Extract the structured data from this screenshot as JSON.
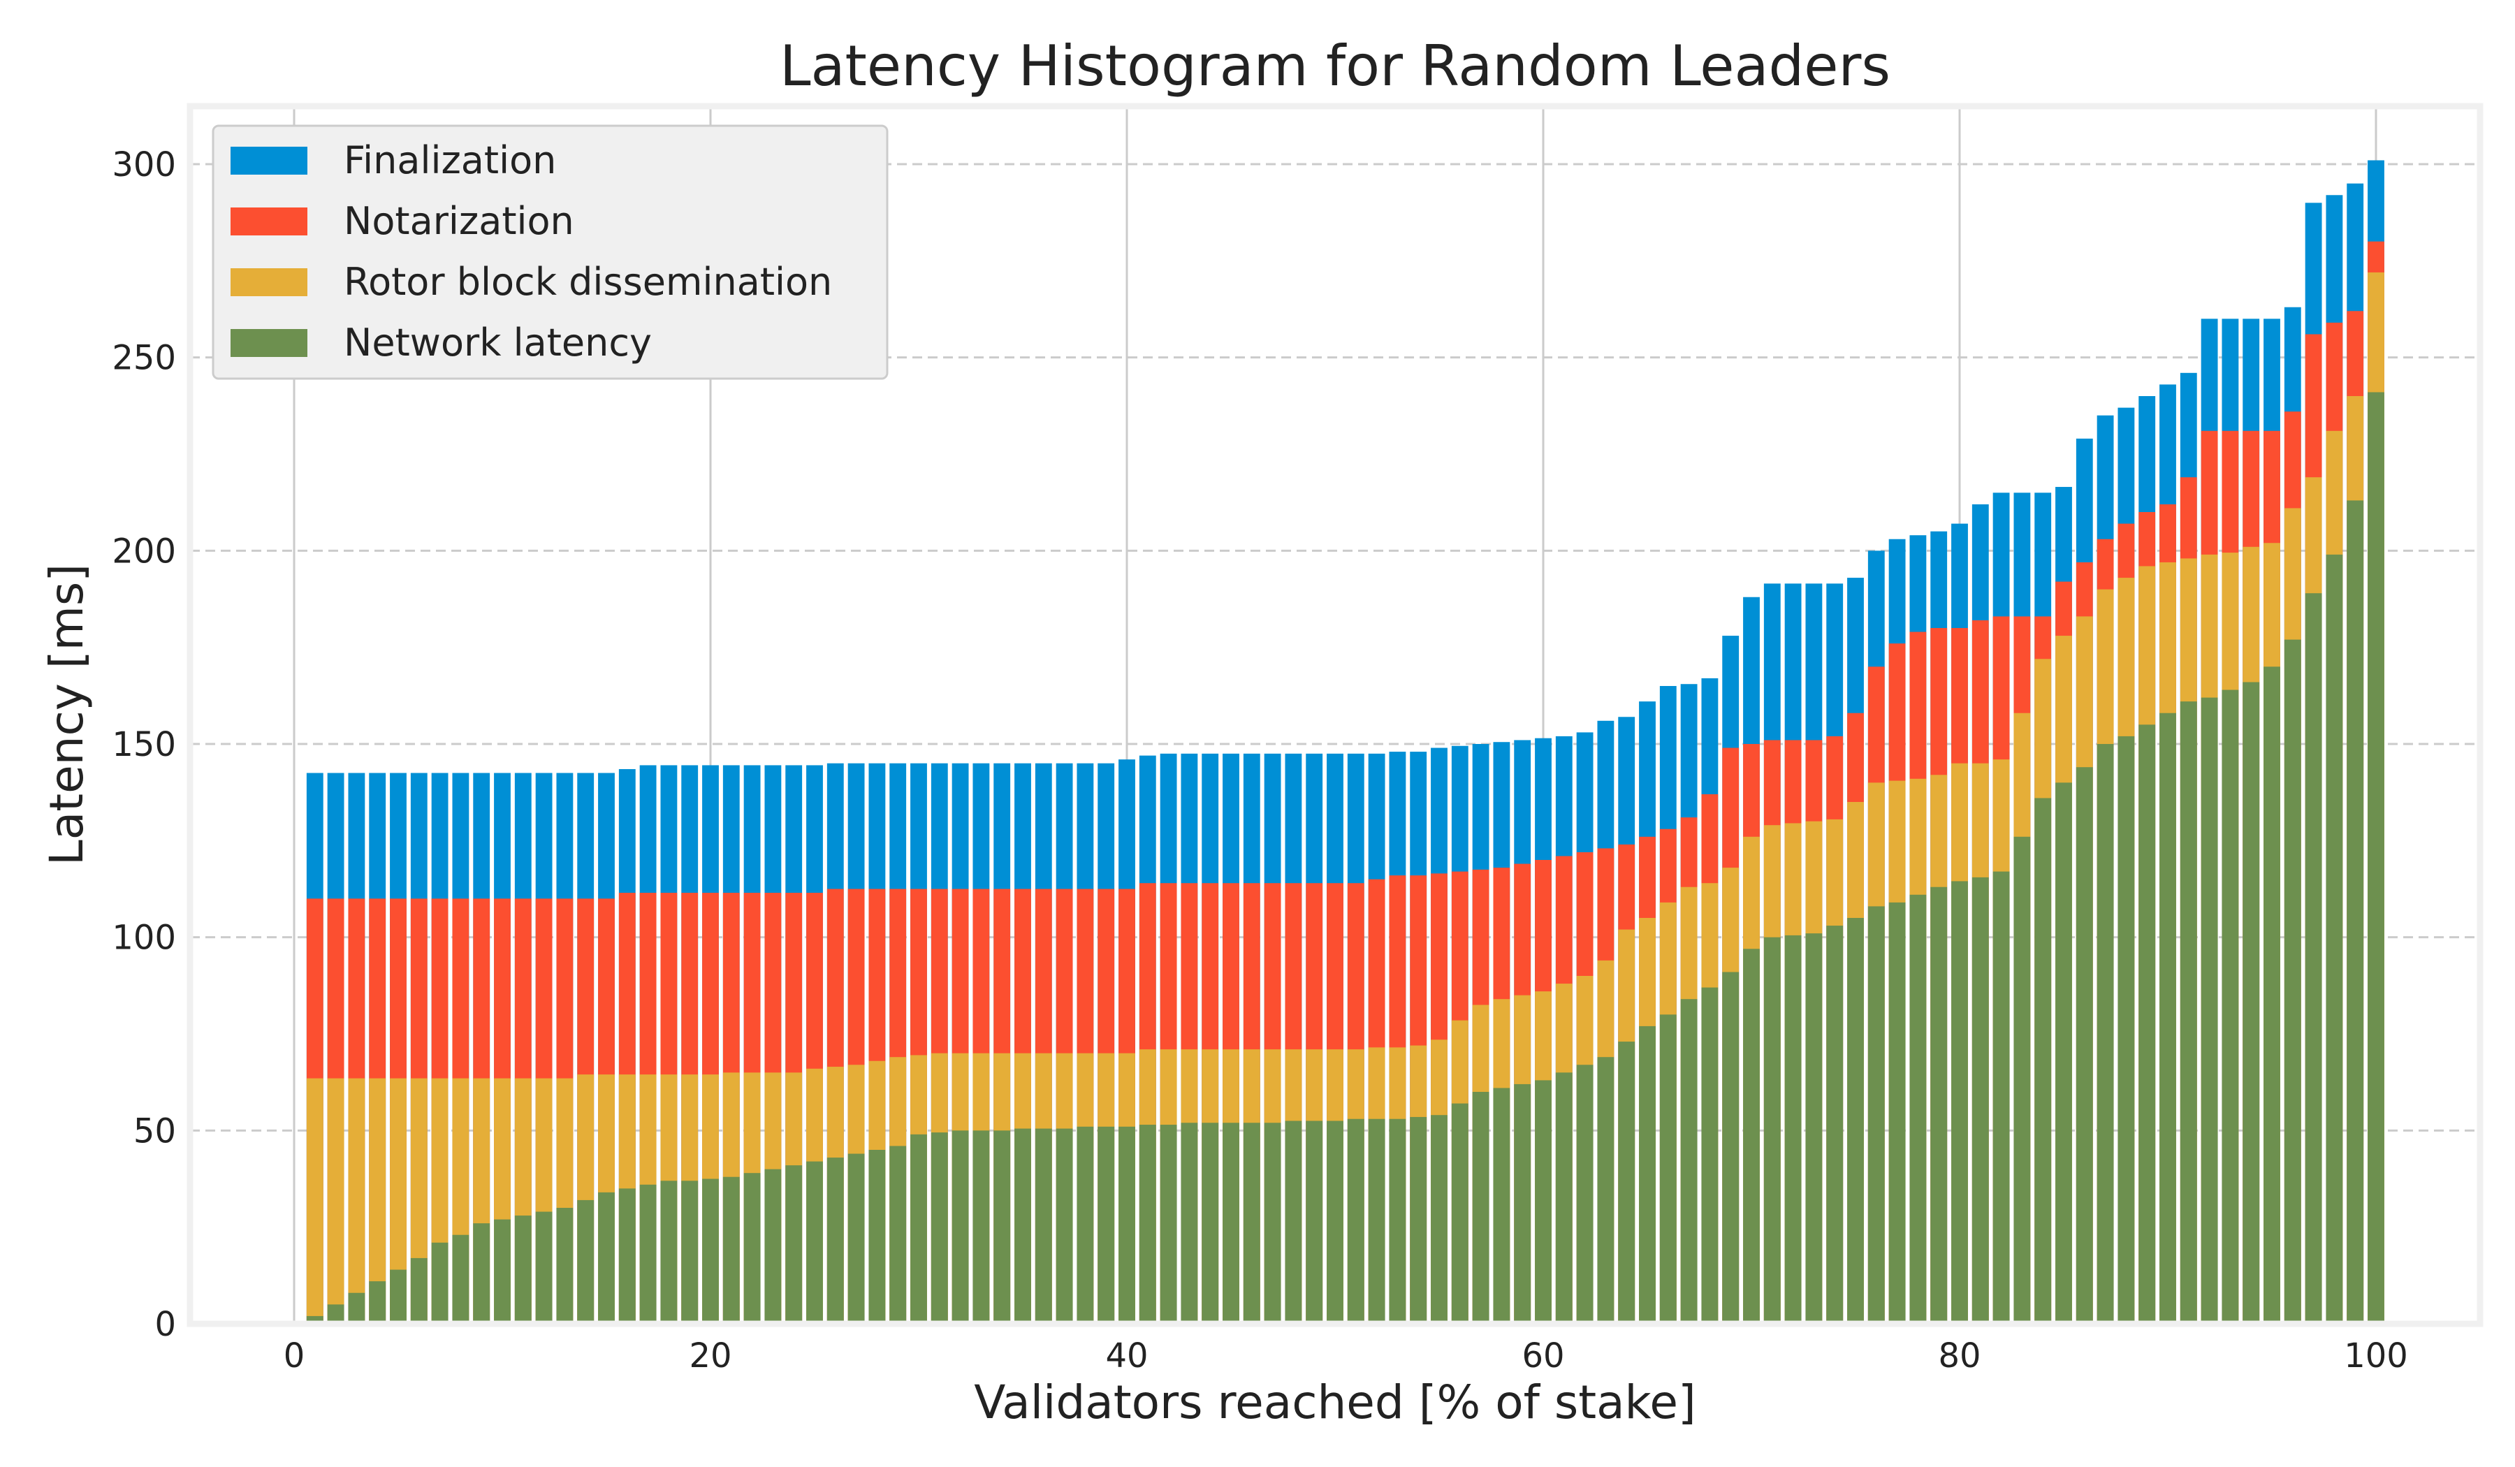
{
  "chart_data": {
    "type": "bar",
    "layout": "stacked (each series value is the cumulative latency at which the stage completes)",
    "title": "Latency Histogram for Random Leaders",
    "xlabel": "Validators reached [% of stake]",
    "ylabel": "Latency [ms]",
    "xlim": [
      -5,
      105
    ],
    "ylim": [
      0,
      315
    ],
    "xticks": [
      0,
      20,
      40,
      60,
      80,
      100
    ],
    "yticks": [
      0,
      50,
      100,
      150,
      200,
      250,
      300
    ],
    "grid": true,
    "legend_position": "top-left",
    "x": [
      1,
      2,
      3,
      4,
      5,
      6,
      7,
      8,
      9,
      10,
      11,
      12,
      13,
      14,
      15,
      16,
      17,
      18,
      19,
      20,
      21,
      22,
      23,
      24,
      25,
      26,
      27,
      28,
      29,
      30,
      31,
      32,
      33,
      34,
      35,
      36,
      37,
      38,
      39,
      40,
      41,
      42,
      43,
      44,
      45,
      46,
      47,
      48,
      49,
      50,
      51,
      52,
      53,
      54,
      55,
      56,
      57,
      58,
      59,
      60,
      61,
      62,
      63,
      64,
      65,
      66,
      67,
      68,
      69,
      70,
      71,
      72,
      73,
      74,
      75,
      76,
      77,
      78,
      79,
      80,
      81,
      82,
      83,
      84,
      85,
      86,
      87,
      88,
      89,
      90,
      91,
      92,
      93,
      94,
      95,
      96,
      97,
      98,
      99,
      100
    ],
    "series": [
      {
        "name": "Finalization",
        "color": "#008fd5",
        "values": [
          142.5,
          142.5,
          142.5,
          142.5,
          142.5,
          142.5,
          142.5,
          142.5,
          142.5,
          142.5,
          142.5,
          142.5,
          142.5,
          142.5,
          142.5,
          143.5,
          144.5,
          144.5,
          144.5,
          144.5,
          144.5,
          144.5,
          144.5,
          144.5,
          144.5,
          145,
          145,
          145,
          145,
          145,
          145,
          145,
          145,
          145,
          145,
          145,
          145,
          145,
          145,
          146,
          147,
          147.5,
          147.5,
          147.5,
          147.5,
          147.5,
          147.5,
          147.5,
          147.5,
          147.5,
          147.5,
          147.5,
          148,
          148,
          149,
          149.5,
          150,
          150.5,
          151,
          151.5,
          152,
          153,
          156,
          157,
          161,
          165,
          165.5,
          167,
          178,
          188,
          191.5,
          191.5,
          191.5,
          191.5,
          193,
          200,
          203,
          204,
          205,
          207,
          212,
          215,
          215,
          215,
          216.5,
          229,
          235,
          237,
          240,
          243,
          246,
          260,
          260,
          260,
          260,
          263,
          290,
          292,
          295,
          301
        ]
      },
      {
        "name": "Notarization",
        "color": "#fc4f30",
        "values": [
          110,
          110,
          110,
          110,
          110,
          110,
          110,
          110,
          110,
          110,
          110,
          110,
          110,
          110,
          110,
          111.5,
          111.5,
          111.5,
          111.5,
          111.5,
          111.5,
          111.5,
          111.5,
          111.5,
          111.5,
          112.5,
          112.5,
          112.5,
          112.5,
          112.5,
          112.5,
          112.5,
          112.5,
          112.5,
          112.5,
          112.5,
          112.5,
          112.5,
          112.5,
          112.5,
          114,
          114,
          114,
          114,
          114,
          114,
          114,
          114,
          114,
          114,
          114,
          115,
          116,
          116,
          116.5,
          117,
          117.5,
          118,
          119,
          120,
          121,
          122,
          123,
          124,
          126,
          128,
          131,
          137,
          149,
          150,
          151,
          151,
          151,
          152,
          158,
          170,
          176,
          179,
          180,
          180,
          182,
          183,
          183,
          183,
          192,
          197,
          203,
          207,
          210,
          212,
          219,
          231,
          231,
          231,
          231,
          236,
          256,
          259,
          262,
          280
        ]
      },
      {
        "name": "Rotor block dissemination",
        "color": "#e5ae38",
        "values": [
          63.5,
          63.5,
          63.5,
          63.5,
          63.5,
          63.5,
          63.5,
          63.5,
          63.5,
          63.5,
          63.5,
          63.5,
          63.5,
          64.5,
          64.5,
          64.5,
          64.5,
          64.5,
          64.5,
          64.5,
          65,
          65,
          65,
          65,
          66,
          66.5,
          67,
          68,
          69,
          69.5,
          70,
          70,
          70,
          70,
          70,
          70,
          70,
          70,
          70,
          70,
          71,
          71,
          71,
          71,
          71,
          71,
          71,
          71,
          71,
          71,
          71,
          71.5,
          71.5,
          72,
          73.5,
          78.5,
          82.5,
          84,
          85,
          86,
          88,
          90,
          94,
          102,
          105,
          109,
          113,
          114,
          118,
          126,
          129,
          129.5,
          130,
          130.5,
          135,
          140,
          140.5,
          141,
          142,
          145,
          145,
          146,
          158,
          172,
          178,
          183,
          190,
          193,
          196,
          197,
          198,
          199,
          199.5,
          201,
          202,
          211,
          219,
          231,
          240,
          272
        ]
      },
      {
        "name": "Network latency",
        "color": "#6d904f",
        "values": [
          2,
          5,
          8,
          11,
          14,
          17,
          21,
          23,
          26,
          27,
          28,
          29,
          30,
          32,
          34,
          35,
          36,
          37,
          37,
          37.5,
          38,
          39,
          40,
          41,
          42,
          43,
          44,
          45,
          46,
          49,
          49.5,
          50,
          50,
          50,
          50.5,
          50.5,
          50.5,
          51,
          51,
          51,
          51.5,
          51.5,
          52,
          52,
          52,
          52,
          52,
          52.5,
          52.5,
          52.5,
          53,
          53,
          53,
          53.5,
          54,
          57,
          60,
          61,
          62,
          63,
          65,
          67,
          69,
          73,
          77,
          80,
          84,
          87,
          91,
          97,
          100,
          100.5,
          101,
          103,
          105,
          108,
          109,
          111,
          113,
          114.5,
          115.5,
          117,
          126,
          136,
          140,
          144,
          150,
          152,
          155,
          158,
          161,
          162,
          164,
          166,
          170,
          177,
          189,
          199,
          213,
          241
        ]
      }
    ]
  }
}
